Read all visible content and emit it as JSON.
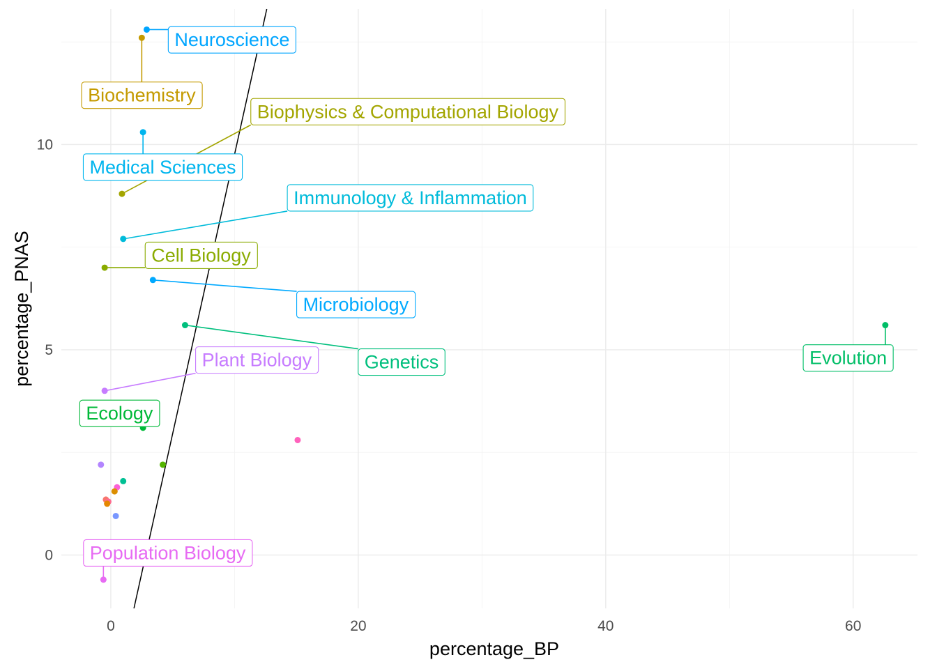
{
  "chart_data": {
    "type": "scatter",
    "title": "",
    "xlabel": "percentage_BP",
    "ylabel": "percentage_PNAS",
    "xlim": [
      -4,
      65.2
    ],
    "ylim": [
      -1.3,
      13.3
    ],
    "x_ticks": [
      0,
      20,
      40,
      60
    ],
    "y_ticks": [
      0,
      5,
      10
    ],
    "x_tick_labels": [
      "0",
      "20",
      "40",
      "60"
    ],
    "y_tick_labels": [
      "0",
      "5",
      "10"
    ],
    "grid": true,
    "legend": "none",
    "reference_line": {
      "intercept": -3.84,
      "slope": 1.36,
      "color": "#000000"
    },
    "points": [
      {
        "x": 2.9,
        "y": 12.8,
        "color": "#00A5FF",
        "label": "Neuroscience"
      },
      {
        "x": 2.5,
        "y": 12.6,
        "color": "#C49A00",
        "label": "Biochemistry"
      },
      {
        "x": 0.9,
        "y": 8.8,
        "color": "#A3A500",
        "label": "Biophysics & Computational Biology"
      },
      {
        "x": 2.6,
        "y": 10.3,
        "color": "#00B5EE",
        "label": "Medical Sciences"
      },
      {
        "x": 1.0,
        "y": 7.7,
        "color": "#00BBDA",
        "label": "Immunology & Inflammation"
      },
      {
        "x": -0.5,
        "y": 7.0,
        "color": "#8AAB00",
        "label": "Cell Biology"
      },
      {
        "x": 3.4,
        "y": 6.7,
        "color": "#00A9FF",
        "label": "Microbiology"
      },
      {
        "x": 6.0,
        "y": 5.6,
        "color": "#00BF7D",
        "label": "Genetics"
      },
      {
        "x": 62.6,
        "y": 5.6,
        "color": "#00BE67",
        "label": "Evolution"
      },
      {
        "x": -0.5,
        "y": 4.0,
        "color": "#C77CFF",
        "label": "Plant Biology"
      },
      {
        "x": 2.6,
        "y": 3.1,
        "color": "#00B938",
        "label": "Ecology"
      },
      {
        "x": -0.6,
        "y": -0.6,
        "color": "#E76BF3",
        "label": "Population Biology"
      },
      {
        "x": 15.1,
        "y": 2.8,
        "color": "#FF62BC",
        "label": ""
      },
      {
        "x": 4.2,
        "y": 2.2,
        "color": "#53B400",
        "label": ""
      },
      {
        "x": -0.8,
        "y": 2.2,
        "color": "#B385FF",
        "label": ""
      },
      {
        "x": 1.0,
        "y": 1.8,
        "color": "#00C094",
        "label": ""
      },
      {
        "x": 0.5,
        "y": 1.65,
        "color": "#FB61D7",
        "label": ""
      },
      {
        "x": 0.3,
        "y": 1.55,
        "color": "#DB8E00",
        "label": ""
      },
      {
        "x": -0.4,
        "y": 1.35,
        "color": "#F8766D",
        "label": ""
      },
      {
        "x": -0.2,
        "y": 1.3,
        "color": "#FF6C91",
        "label": ""
      },
      {
        "x": -0.3,
        "y": 1.25,
        "color": "#E58700",
        "label": ""
      },
      {
        "x": 0.4,
        "y": 0.95,
        "color": "#7997FF",
        "label": ""
      }
    ],
    "text_labels": [
      {
        "text": "Neuroscience",
        "color": "#00A5FF",
        "x": 9.8,
        "y": 12.55
      },
      {
        "text": "Biochemistry",
        "color": "#C49A00",
        "x": 2.5,
        "y": 11.2
      },
      {
        "text": "Biophysics & Computational Biology",
        "color": "#A3A500",
        "x": 24.0,
        "y": 10.8
      },
      {
        "text": "Medical Sciences",
        "color": "#00B5EE",
        "x": 4.2,
        "y": 9.45
      },
      {
        "text": "Immunology & Inflammation",
        "color": "#00BBDA",
        "x": 24.2,
        "y": 8.7
      },
      {
        "text": "Cell Biology",
        "color": "#8AAB00",
        "x": 7.3,
        "y": 7.3
      },
      {
        "text": "Microbiology",
        "color": "#00A9FF",
        "x": 19.8,
        "y": 6.1
      },
      {
        "text": "Genetics",
        "color": "#00BF7D",
        "x": 23.5,
        "y": 4.7
      },
      {
        "text": "Evolution",
        "color": "#00BE67",
        "x": 59.6,
        "y": 4.8
      },
      {
        "text": "Plant Biology",
        "color": "#C77CFF",
        "x": 11.8,
        "y": 4.75
      },
      {
        "text": "Ecology",
        "color": "#00B938",
        "x": 0.7,
        "y": 3.45
      },
      {
        "text": "Population Biology",
        "color": "#E76BF3",
        "x": 4.6,
        "y": 0.05
      }
    ]
  }
}
